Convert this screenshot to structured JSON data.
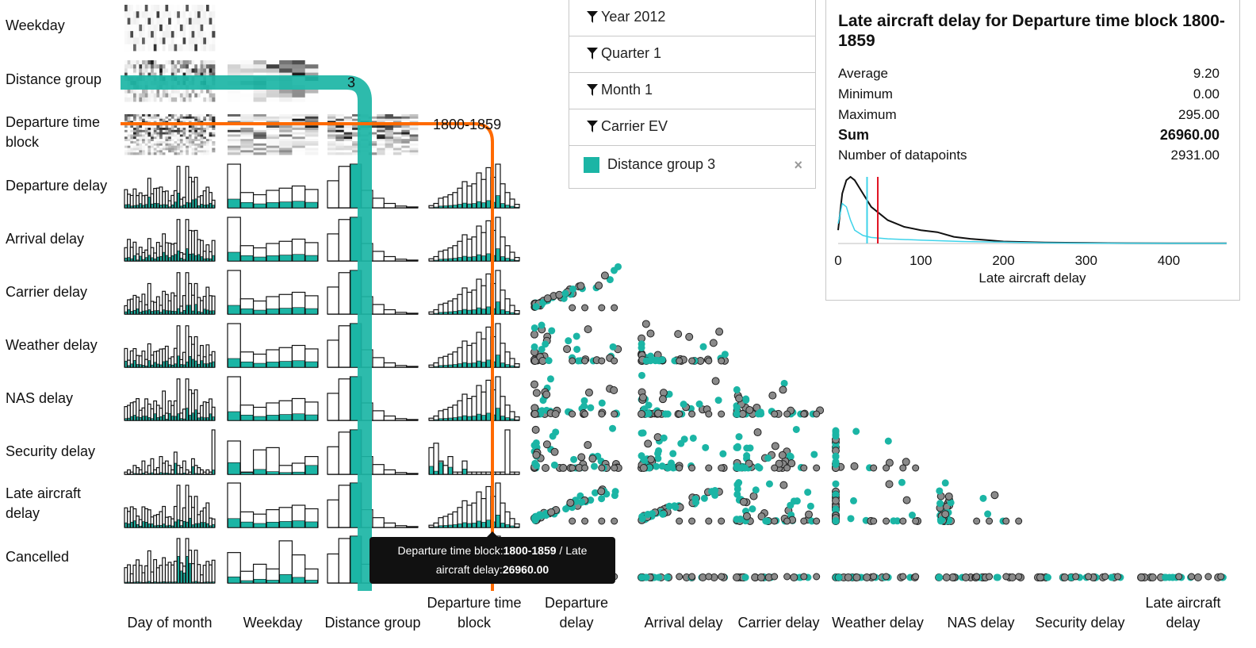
{
  "row_labels": [
    "Weekday",
    "Distance group",
    "Departure time block",
    "Departure delay",
    "Arrival delay",
    "Carrier delay",
    "Weather delay",
    "NAS delay",
    "Security delay",
    "Late aircraft delay",
    "Cancelled"
  ],
  "col_labels": [
    "Day of month",
    "Weekday",
    "Distance group",
    "Departure time block",
    "Departure delay",
    "Arrival delay",
    "Carrier delay",
    "Weather delay",
    "NAS delay",
    "Security delay",
    "Late aircraft delay"
  ],
  "highlight": {
    "distance_group_label": "3",
    "time_block_label": "1800-1859"
  },
  "filters": [
    {
      "label": "Year 2012"
    },
    {
      "label": "Quarter 1"
    },
    {
      "label": "Month 1"
    },
    {
      "label": "Carrier EV"
    }
  ],
  "selection": {
    "label": "Distance group 3",
    "close": "×"
  },
  "stats": {
    "title": "Late aircraft delay for Departure time block 1800-1859",
    "rows": [
      {
        "label": "Average",
        "value": "9.20"
      },
      {
        "label": "Minimum",
        "value": "0.00"
      },
      {
        "label": "Maximum",
        "value": "295.00"
      },
      {
        "label": "Sum",
        "value": "26960.00"
      },
      {
        "label": "Number of datapoints",
        "value": "2931.00"
      }
    ]
  },
  "tooltip": {
    "line1_prefix": "Departure time block:",
    "line1_bold": "1800-1859",
    "line1_suffix": " / Late",
    "line2_prefix": "aircraft delay:",
    "line2_bold": "26960.00"
  },
  "colors": {
    "teal": "#1bb5a5",
    "orange": "#ff6a00",
    "cyan": "#3fd3ea",
    "red": "#e01020",
    "point_gray": "#8a8a8a"
  },
  "chart_data": {
    "type": "line",
    "title": "",
    "xlabel": "Late aircraft delay",
    "ylabel": "",
    "xlim": [
      0,
      470
    ],
    "xticks": [
      "0",
      "100",
      "200",
      "300",
      "400"
    ],
    "series": [
      {
        "x": [
          0,
          5,
          10,
          15,
          20,
          30,
          40,
          50,
          60,
          80,
          100,
          120,
          140,
          160,
          180,
          200,
          250,
          300,
          350,
          400,
          470
        ],
        "y": [
          0.2,
          0.75,
          0.95,
          1.0,
          0.95,
          0.75,
          0.55,
          0.45,
          0.35,
          0.25,
          0.2,
          0.17,
          0.1,
          0.07,
          0.05,
          0.03,
          0.015,
          0.008,
          0.005,
          0.003,
          0.002
        ]
      },
      {
        "x": [
          0,
          5,
          10,
          15,
          20,
          30,
          40,
          60,
          100,
          150,
          200,
          250,
          300,
          400,
          470
        ],
        "y": [
          0.3,
          0.6,
          0.55,
          0.35,
          0.2,
          0.12,
          0.09,
          0.07,
          0.05,
          0.03,
          0.02,
          0.01,
          0.005,
          0.003,
          0.002
        ]
      }
    ],
    "markers": [
      {
        "color": "cyan",
        "x": 35
      },
      {
        "color": "red",
        "x": 48
      }
    ]
  }
}
